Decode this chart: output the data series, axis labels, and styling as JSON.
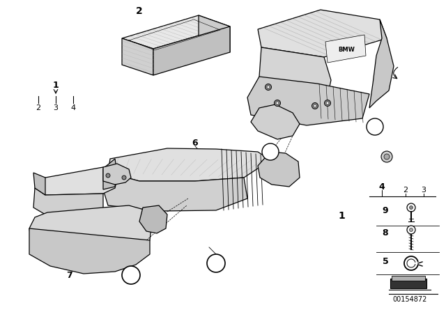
{
  "background_color": "#ffffff",
  "diagram_id": "00154872",
  "line_color": "#000000",
  "gray_light": "#d8d8d8",
  "gray_mid": "#b8b8b8",
  "gray_dark": "#888888",
  "dot_color": "#555555"
}
